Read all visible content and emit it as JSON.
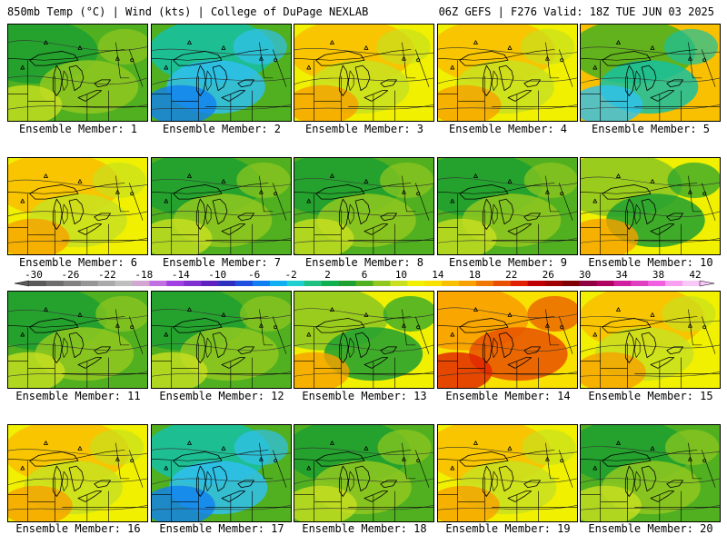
{
  "header": {
    "left": "850mb Temp (°C) | Wind (kts) | College of DuPage NEXLAB",
    "right": "06Z GEFS | F276 Valid: 18Z TUE JUN 03 2025"
  },
  "caption_prefix": "Ensemble Member:",
  "members": [
    {
      "label": "Ensemble Member: 1",
      "fill": "green"
    },
    {
      "label": "Ensemble Member: 2",
      "fill": "cool"
    },
    {
      "label": "Ensemble Member: 3",
      "fill": "warm"
    },
    {
      "label": "Ensemble Member: 4",
      "fill": "warm"
    },
    {
      "label": "Ensemble Member: 5",
      "fill": "mixed-cool"
    },
    {
      "label": "Ensemble Member: 6",
      "fill": "warm"
    },
    {
      "label": "Ensemble Member: 7",
      "fill": "green"
    },
    {
      "label": "Ensemble Member: 8",
      "fill": "green"
    },
    {
      "label": "Ensemble Member: 9",
      "fill": "green"
    },
    {
      "label": "Ensemble Member: 10",
      "fill": "mixed-warm"
    },
    {
      "label": "Ensemble Member: 11",
      "fill": "green"
    },
    {
      "label": "Ensemble Member: 12",
      "fill": "green"
    },
    {
      "label": "Ensemble Member: 13",
      "fill": "mixed-warm"
    },
    {
      "label": "Ensemble Member: 14",
      "fill": "hot"
    },
    {
      "label": "Ensemble Member: 15",
      "fill": "warm"
    },
    {
      "label": "Ensemble Member: 16",
      "fill": "warm"
    },
    {
      "label": "Ensemble Member: 17",
      "fill": "cool"
    },
    {
      "label": "Ensemble Member: 18",
      "fill": "green"
    },
    {
      "label": "Ensemble Member: 19",
      "fill": "warm"
    },
    {
      "label": "Ensemble Member: 20",
      "fill": "green"
    }
  ],
  "colorbar": {
    "ticks": [
      "-30",
      "-26",
      "-22",
      "-18",
      "-14",
      "-10",
      "-6",
      "-2",
      "2",
      "6",
      "10",
      "14",
      "18",
      "22",
      "26",
      "30",
      "34",
      "38",
      "42"
    ],
    "colors": [
      "#5a5a5a",
      "#6e6e6e",
      "#828282",
      "#969696",
      "#aaaaaa",
      "#bebebe",
      "#d2a8d2",
      "#c070e0",
      "#a040e0",
      "#8030d0",
      "#6020c0",
      "#3030c0",
      "#2050e0",
      "#1080f0",
      "#10b0f0",
      "#20d0d0",
      "#20c080",
      "#10b050",
      "#20a030",
      "#50b020",
      "#90c820",
      "#c8e020",
      "#f0f000",
      "#f8e000",
      "#f8c000",
      "#f8a000",
      "#f07800",
      "#e85000",
      "#e02000",
      "#c00000",
      "#a00000",
      "#800000",
      "#900040",
      "#b00060",
      "#d020a0",
      "#e040c0",
      "#f060e0",
      "#f8a0f0",
      "#f8c8f8"
    ],
    "colors_meta": "fill colors of the 850mb temperature scale"
  },
  "palette": {
    "cool": [
      "#18c0a0",
      "#20d0d0",
      "#30c0f0",
      "#1080f0"
    ],
    "green": [
      "#20a030",
      "#10b050",
      "#50b020",
      "#90c820"
    ],
    "warm": [
      "#c8e020",
      "#f0f000",
      "#f8e000",
      "#f8c000"
    ],
    "hot": [
      "#f8a000",
      "#f07800",
      "#e85000",
      "#e02000"
    ]
  }
}
